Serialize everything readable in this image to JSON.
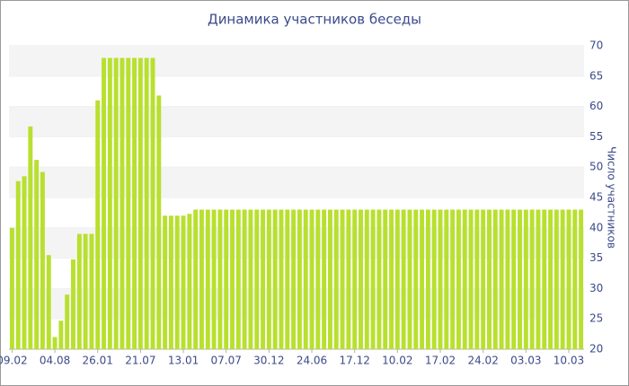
{
  "chart_data": {
    "type": "bar",
    "title": "Динамика участников беседы",
    "y_label": "Число участников",
    "categories": [
      "09.02",
      null,
      null,
      null,
      null,
      null,
      null,
      "04.08",
      null,
      null,
      null,
      null,
      null,
      null,
      "26.01",
      null,
      null,
      null,
      null,
      null,
      null,
      "21.07",
      null,
      null,
      null,
      null,
      null,
      null,
      "13.01",
      null,
      null,
      null,
      null,
      null,
      null,
      "07.07",
      null,
      null,
      null,
      null,
      null,
      null,
      "30.12",
      null,
      null,
      null,
      null,
      null,
      null,
      "24.06",
      null,
      null,
      null,
      null,
      null,
      null,
      "17.12",
      null,
      null,
      null,
      null,
      null,
      null,
      "10.02",
      null,
      null,
      null,
      null,
      null,
      null,
      "17.02",
      null,
      null,
      null,
      null,
      null,
      null,
      "24.02",
      null,
      null,
      null,
      null,
      null,
      null,
      "03.03",
      null,
      null,
      null,
      null,
      null,
      null,
      "10.03",
      null,
      null
    ],
    "values": [
      40,
      47.7,
      48.5,
      56.7,
      51.2,
      49.2,
      35.5,
      22,
      24.7,
      29,
      34.8,
      39,
      39,
      39,
      61,
      68,
      68,
      68,
      68,
      68,
      68,
      68,
      68,
      68,
      61.8,
      42,
      42,
      42,
      42,
      42.3,
      43,
      43,
      43,
      43,
      43,
      43,
      43,
      43,
      43,
      43,
      43,
      43,
      43,
      43,
      43,
      43,
      43,
      43,
      43,
      43,
      43,
      43,
      43,
      43,
      43,
      43,
      43,
      43,
      43,
      43,
      43,
      43,
      43,
      43,
      43,
      43,
      43,
      43,
      43,
      43,
      43,
      43,
      43,
      43,
      43,
      43,
      43,
      43,
      43,
      43,
      43,
      43,
      43,
      43,
      43,
      43,
      43,
      43,
      43,
      43,
      43,
      43,
      43,
      43
    ],
    "color": "#b8e02e",
    "ylim": [
      20,
      70
    ],
    "yticks": [
      20,
      25,
      30,
      35,
      40,
      45,
      50,
      55,
      60,
      65,
      70
    ],
    "grid": true
  }
}
